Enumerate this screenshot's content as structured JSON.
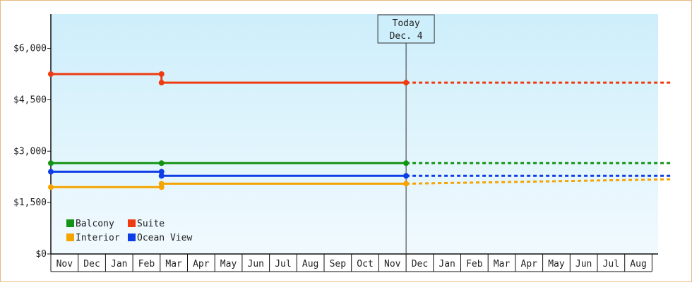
{
  "chart_data": {
    "type": "line",
    "title": "",
    "xlabel": "",
    "ylabel": "",
    "ylim": [
      0,
      7000
    ],
    "y_ticks": [
      {
        "value": 0,
        "label": "$0"
      },
      {
        "value": 1500,
        "label": "$1,500"
      },
      {
        "value": 3000,
        "label": "$3,000"
      },
      {
        "value": 4500,
        "label": "$4,500"
      },
      {
        "value": 6000,
        "label": "$6,000"
      }
    ],
    "x_months": [
      "Nov",
      "Dec",
      "Jan",
      "Feb",
      "Mar",
      "Apr",
      "May",
      "Jun",
      "Jul",
      "Aug",
      "Sep",
      "Oct",
      "Nov",
      "Dec",
      "Jan",
      "Feb",
      "Mar",
      "Apr",
      "May",
      "Jun",
      "Jul",
      "Aug"
    ],
    "x_start_index": 0,
    "x_end_index": 22.7,
    "today": {
      "index": 13.0,
      "line1": "Today",
      "line2": "Dec. 4"
    },
    "grid": false,
    "legend_position": "bottom-left",
    "series": [
      {
        "name": "Balcony",
        "color": "#149414",
        "points": [
          [
            0,
            2650
          ],
          [
            4.05,
            2650
          ],
          [
            13.0,
            2650
          ]
        ],
        "projection": [
          [
            13.0,
            2650
          ],
          [
            22.7,
            2650
          ]
        ]
      },
      {
        "name": "Suite",
        "color": "#ee3b10",
        "points": [
          [
            0,
            5250
          ],
          [
            4.05,
            5250
          ],
          [
            4.05,
            5000
          ],
          [
            13.0,
            5000
          ]
        ],
        "projection": [
          [
            13.0,
            5000
          ],
          [
            22.7,
            5000
          ]
        ]
      },
      {
        "name": "Interior",
        "color": "#f5a400",
        "points": [
          [
            0,
            1950
          ],
          [
            4.05,
            1950
          ],
          [
            4.05,
            2050
          ],
          [
            13.0,
            2050
          ]
        ],
        "projection": [
          [
            13.0,
            2050
          ],
          [
            22.7,
            2180
          ]
        ]
      },
      {
        "name": "Ocean View",
        "color": "#0f3ee6",
        "points": [
          [
            0,
            2400
          ],
          [
            4.05,
            2400
          ],
          [
            4.05,
            2280
          ],
          [
            13.0,
            2280
          ]
        ],
        "projection": [
          [
            13.0,
            2280
          ],
          [
            22.7,
            2280
          ]
        ]
      }
    ]
  }
}
